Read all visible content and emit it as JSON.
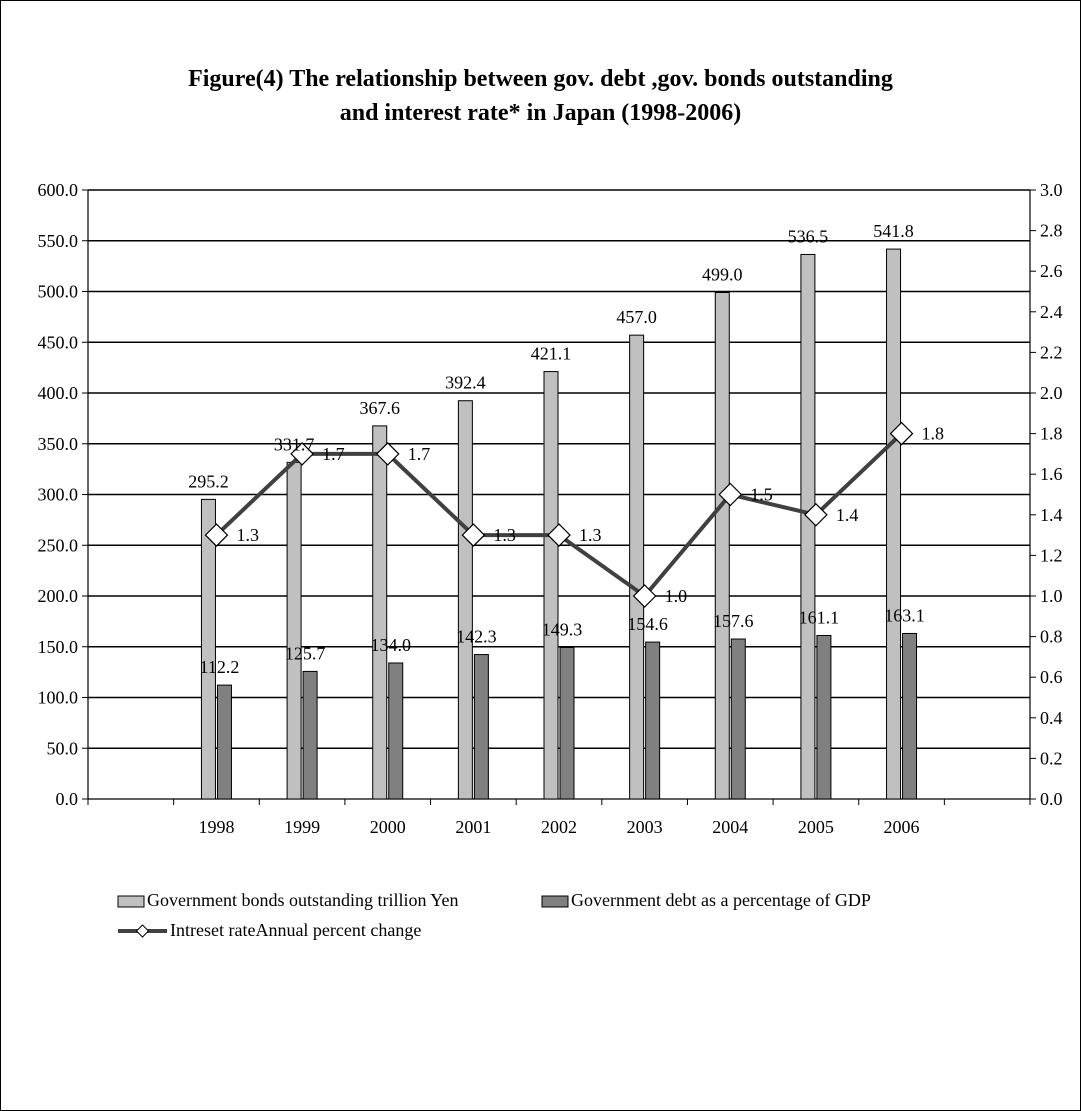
{
  "chart_data": {
    "type": "bar",
    "title_lines": [
      "Figure(4) The relationship between gov. debt ,gov. bonds outstanding",
      "and interest rate* in Japan (1998-2006)"
    ],
    "categories": [
      "1998",
      "1999",
      "2000",
      "2001",
      "2002",
      "2003",
      "2004",
      "2005",
      "2006"
    ],
    "series": [
      {
        "name": "Government bonds outstanding trillion Yen",
        "type": "bar",
        "axis": "left",
        "color": "#c0c0c0",
        "values": [
          295.2,
          331.7,
          367.6,
          392.4,
          421.1,
          457.0,
          499.0,
          536.5,
          541.8
        ],
        "labels": [
          "295.2",
          "331.7",
          "367.6",
          "392.4",
          "421.1",
          "457.0",
          "499.0",
          "536.5",
          "541.8"
        ]
      },
      {
        "name": "Government debt as a percentage of GDP",
        "type": "bar",
        "axis": "left",
        "color": "#808080",
        "values": [
          112.2,
          125.7,
          134.0,
          142.3,
          149.3,
          154.6,
          157.6,
          161.1,
          163.1
        ],
        "labels": [
          "112.2",
          "125.7",
          "134.0",
          "142.3",
          "149.3",
          "154.6",
          "157.6",
          "161.1",
          "163.1"
        ]
      },
      {
        "name": "Intreset rateAnnual percent change",
        "type": "line",
        "axis": "right",
        "color": "#404040",
        "values": [
          1.3,
          1.7,
          1.7,
          1.3,
          1.3,
          1.0,
          1.5,
          1.4,
          1.8
        ],
        "labels": [
          "1.3",
          "1.7",
          "1.7",
          "1.3",
          "1.3",
          "1.0",
          "1.5",
          "1.4",
          "1.8"
        ]
      }
    ],
    "y_left": {
      "min": 0,
      "max": 600,
      "step": 50,
      "tick_labels": [
        "0.0",
        "50.0",
        "100.0",
        "150.0",
        "200.0",
        "250.0",
        "300.0",
        "350.0",
        "400.0",
        "450.0",
        "500.0",
        "550.0",
        "600.0"
      ]
    },
    "y_right": {
      "min": 0,
      "max": 3,
      "step": 0.2,
      "tick_labels": [
        "0.0",
        "0.2",
        "0.4",
        "0.6",
        "0.8",
        "1.0",
        "1.2",
        "1.4",
        "1.6",
        "1.8",
        "2.0",
        "2.2",
        "2.4",
        "2.6",
        "2.8",
        "3.0"
      ]
    },
    "x_slots": 11,
    "grid": "horizontal",
    "legend_position": "bottom-left"
  }
}
